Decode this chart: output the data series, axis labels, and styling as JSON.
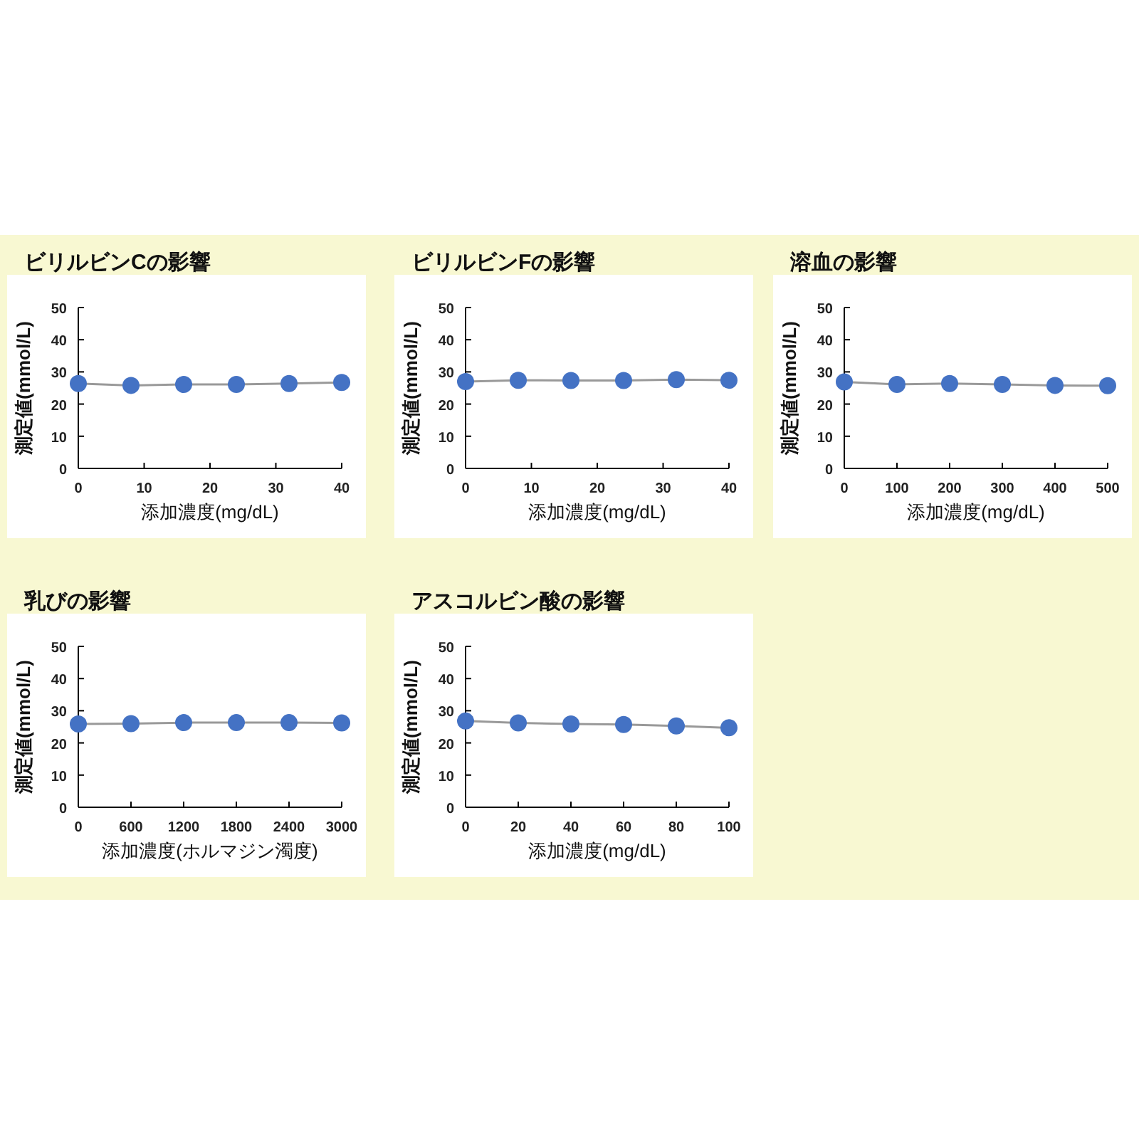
{
  "chart_data": [
    {
      "type": "line",
      "title": "ビリルビンCの影響",
      "xlabel": "添加濃度(mg/dL)",
      "ylabel": "測定値(mmol/L)",
      "x": [
        0,
        8,
        16,
        24,
        32,
        40
      ],
      "series": [
        {
          "color": "#4472c4",
          "values": [
            26.4,
            25.8,
            26.1,
            26.1,
            26.4,
            26.7
          ]
        }
      ],
      "marker": "circle",
      "xlim": [
        0,
        40
      ],
      "xticks": [
        0,
        10,
        20,
        30,
        40
      ],
      "ylim": [
        0,
        50
      ],
      "yticks": [
        0,
        10,
        20,
        30,
        40,
        50
      ]
    },
    {
      "type": "line",
      "title": "ビリルビンFの影響",
      "xlabel": "添加濃度(mg/dL)",
      "ylabel": "測定値(mmol/L)",
      "x": [
        0,
        8,
        16,
        24,
        32,
        40
      ],
      "series": [
        {
          "color": "#4472c4",
          "values": [
            27.0,
            27.4,
            27.3,
            27.3,
            27.6,
            27.4
          ]
        }
      ],
      "marker": "circle",
      "xlim": [
        0,
        40
      ],
      "xticks": [
        0,
        10,
        20,
        30,
        40
      ],
      "ylim": [
        0,
        50
      ],
      "yticks": [
        0,
        10,
        20,
        30,
        40,
        50
      ]
    },
    {
      "type": "line",
      "title": "溶血の影響",
      "xlabel": "添加濃度(mg/dL)",
      "ylabel": "測定値(mmol/L)",
      "x": [
        0,
        100,
        200,
        300,
        400,
        500
      ],
      "series": [
        {
          "color": "#4472c4",
          "values": [
            26.9,
            26.1,
            26.4,
            26.1,
            25.8,
            25.7
          ]
        }
      ],
      "marker": "circle",
      "xlim": [
        0,
        500
      ],
      "xticks": [
        0,
        100,
        200,
        300,
        400,
        500
      ],
      "ylim": [
        0,
        50
      ],
      "yticks": [
        0,
        10,
        20,
        30,
        40,
        50
      ]
    },
    {
      "type": "line",
      "title": "乳びの影響",
      "xlabel": "添加濃度(ホルマジン濁度)",
      "ylabel": "測定値(mmol/L)",
      "x": [
        0,
        600,
        1200,
        1800,
        2400,
        3000
      ],
      "series": [
        {
          "color": "#4472c4",
          "values": [
            25.9,
            26.0,
            26.3,
            26.3,
            26.3,
            26.2
          ]
        }
      ],
      "marker": "circle",
      "xlim": [
        0,
        3000
      ],
      "xticks": [
        0,
        600,
        1200,
        1800,
        2400,
        3000
      ],
      "ylim": [
        0,
        50
      ],
      "yticks": [
        0,
        10,
        20,
        30,
        40,
        50
      ]
    },
    {
      "type": "line",
      "title": "アスコルビン酸の影響",
      "xlabel": "添加濃度(mg/dL)",
      "ylabel": "測定値(mmol/L)",
      "x": [
        0,
        20,
        40,
        60,
        80,
        100
      ],
      "series": [
        {
          "color": "#4472c4",
          "values": [
            26.8,
            26.2,
            25.9,
            25.7,
            25.3,
            24.7
          ]
        }
      ],
      "marker": "circle",
      "xlim": [
        0,
        100
      ],
      "xticks": [
        0,
        20,
        40,
        60,
        80,
        100
      ],
      "ylim": [
        0,
        50
      ],
      "yticks": [
        0,
        10,
        20,
        30,
        40,
        50
      ]
    }
  ]
}
